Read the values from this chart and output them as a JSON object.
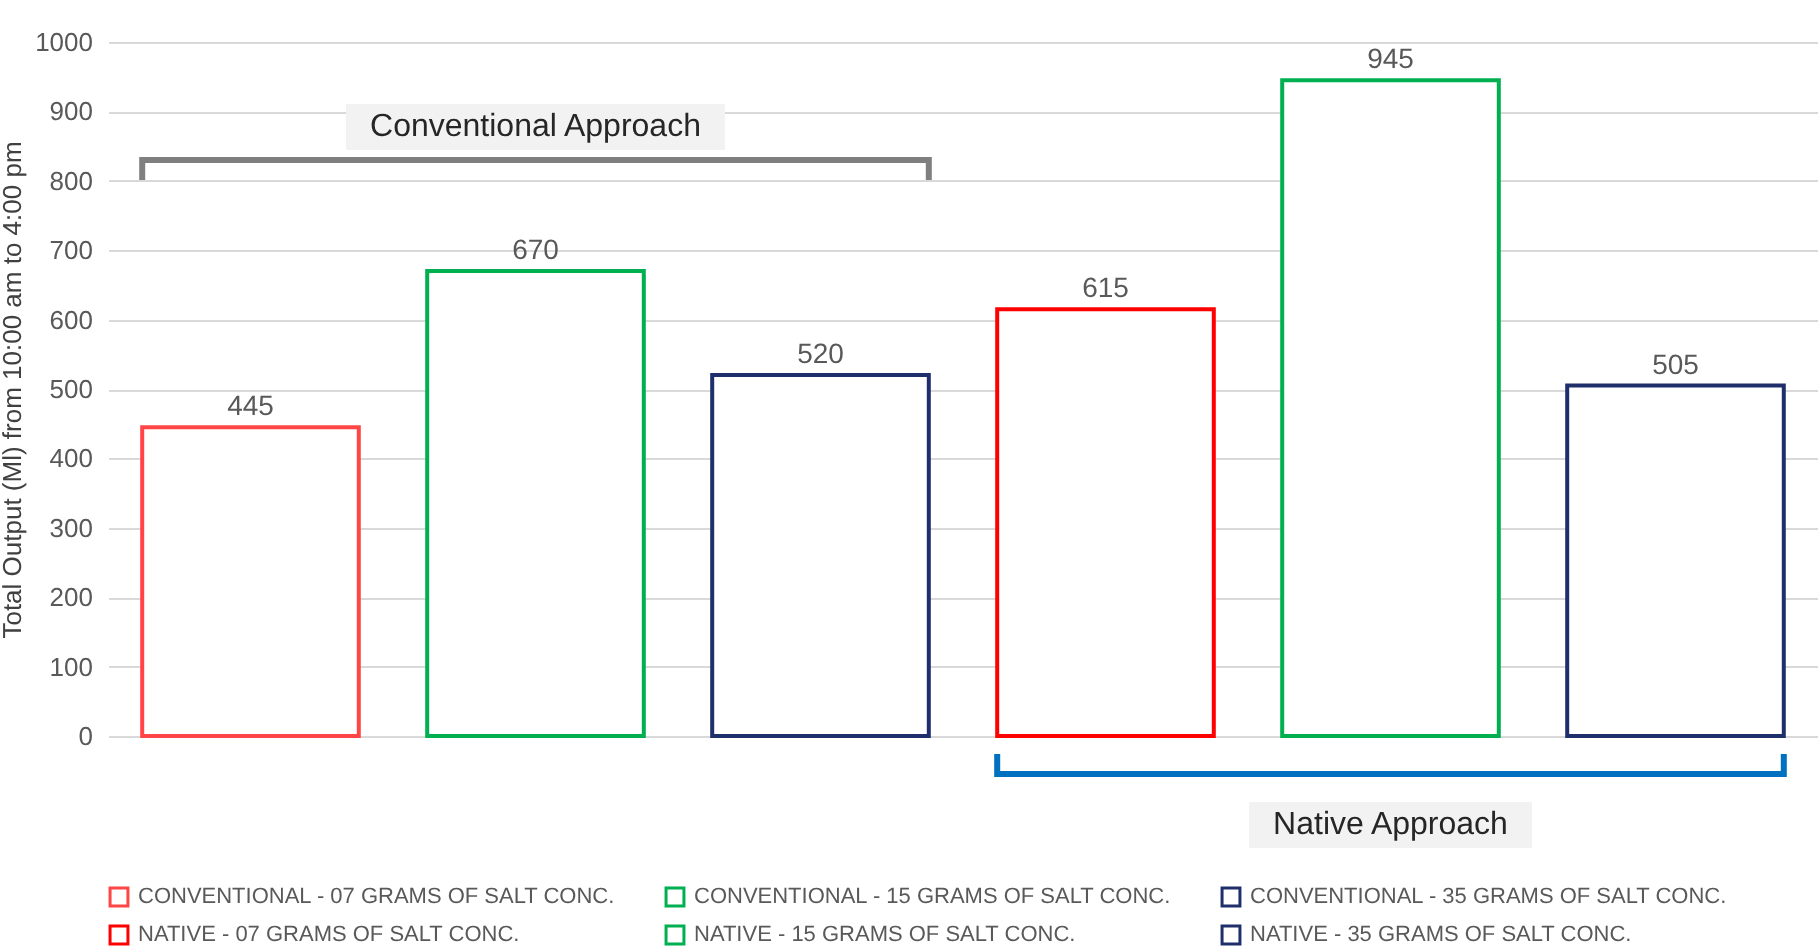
{
  "chart_data": {
    "type": "bar",
    "ylabel": "Total Output (Ml) from 10:00 am to 4:00 pm",
    "categories": [
      null,
      null,
      null,
      null,
      null,
      null
    ],
    "series": [
      {
        "name": "CONVENTIONAL - 07 GRAMS OF SALT CONC.",
        "color": "#ff4545",
        "values": [
          445,
          null,
          null,
          null,
          null,
          null
        ]
      },
      {
        "name": "CONVENTIONAL - 15 GRAMS OF SALT CONC.",
        "color": "#00b050",
        "values": [
          null,
          670,
          null,
          null,
          null,
          null
        ]
      },
      {
        "name": "CONVENTIONAL - 35 GRAMS OF SALT CONC.",
        "color": "#1f2f6b",
        "values": [
          null,
          null,
          520,
          null,
          null,
          null
        ]
      },
      {
        "name": "NATIVE - 07 GRAMS OF SALT CONC.",
        "color": "#ff0000",
        "values": [
          null,
          null,
          null,
          615,
          null,
          null
        ]
      },
      {
        "name": "NATIVE - 15 GRAMS OF SALT CONC.",
        "color": "#00b050",
        "values": [
          null,
          null,
          null,
          null,
          945,
          null
        ]
      },
      {
        "name": "NATIVE - 35 GRAMS OF SALT CONC.",
        "color": "#1f2f6b",
        "values": [
          null,
          null,
          null,
          null,
          null,
          505
        ]
      }
    ],
    "ylim": [
      0,
      1000
    ],
    "yticks": [
      0,
      100,
      200,
      300,
      400,
      500,
      600,
      700,
      800,
      900,
      {
        "value": 1000,
        "label": "1000"
      }
    ],
    "grid": "y",
    "legend": "bottom",
    "tick_labels": "y",
    "data_labels": true,
    "annotations": [
      "Conventional Approach",
      "Native Approach"
    ]
  }
}
